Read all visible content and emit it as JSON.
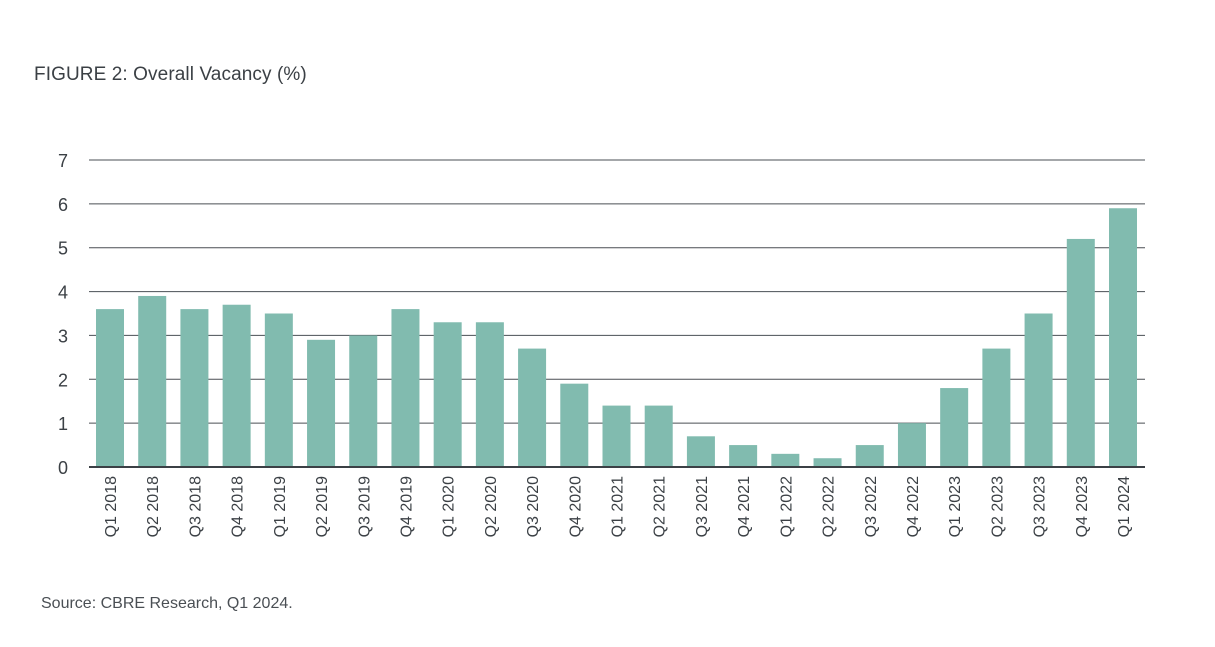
{
  "title": "FIGURE 2: Overall Vacancy (%)",
  "source": "Source: CBRE Research, Q1 2024.",
  "colors": {
    "bar": "#81bbaf",
    "gridline": "#4a4f54",
    "axis": "#3b4045",
    "text": "#3b4045"
  },
  "chart_data": {
    "type": "bar",
    "title": "FIGURE 2: Overall Vacancy (%)",
    "xlabel": "",
    "ylabel": "",
    "ylim": [
      0,
      7
    ],
    "yticks": [
      0,
      1,
      2,
      3,
      4,
      5,
      6,
      7
    ],
    "grid": true,
    "legend": "none",
    "categories": [
      "Q1 2018",
      "Q2 2018",
      "Q3 2018",
      "Q4 2018",
      "Q1 2019",
      "Q2 2019",
      "Q3 2019",
      "Q4 2019",
      "Q1 2020",
      "Q2 2020",
      "Q3 2020",
      "Q4 2020",
      "Q1 2021",
      "Q2 2021",
      "Q3 2021",
      "Q4 2021",
      "Q1 2022",
      "Q2 2022",
      "Q3 2022",
      "Q4 2022",
      "Q1 2023",
      "Q2 2023",
      "Q3 2023",
      "Q4 2023",
      "Q1 2024"
    ],
    "values": [
      3.6,
      3.9,
      3.6,
      3.7,
      3.5,
      2.9,
      3.0,
      3.6,
      3.3,
      3.3,
      2.7,
      1.9,
      1.4,
      1.4,
      0.7,
      0.5,
      0.3,
      0.2,
      0.5,
      1.0,
      1.8,
      2.7,
      3.5,
      5.2,
      5.9
    ]
  }
}
